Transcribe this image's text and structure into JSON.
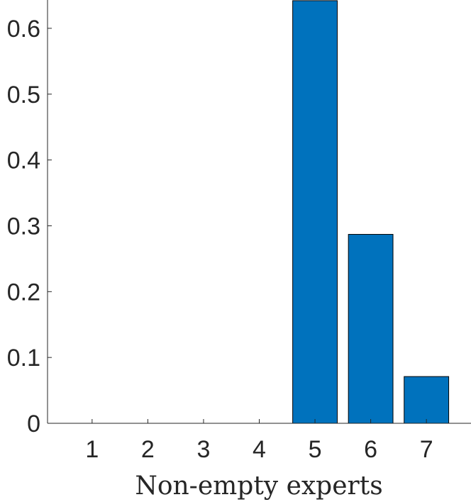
{
  "chart_data": {
    "type": "bar",
    "title": "",
    "xlabel": "Non-empty experts",
    "ylabel": "",
    "categories": [
      "1",
      "2",
      "3",
      "4",
      "5",
      "6",
      "7"
    ],
    "values": [
      0,
      0,
      0,
      0,
      0.642,
      0.287,
      0.071
    ],
    "ylim": [
      0,
      0.643
    ],
    "yticks": [
      0,
      0.1,
      0.2,
      0.3,
      0.4,
      0.5,
      0.6
    ],
    "ytick_labels": [
      "0",
      "0.1",
      "0.2",
      "0.3",
      "0.4",
      "0.5",
      "0.6"
    ],
    "bar_color": "#0072BD",
    "grid": false,
    "legend": "none"
  }
}
